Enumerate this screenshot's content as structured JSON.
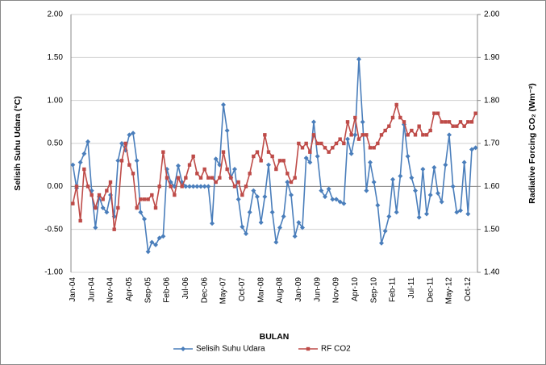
{
  "chart_data": {
    "type": "line",
    "x_label": "BULAN",
    "y_label": "Selisih Suhu Udara (°C)",
    "y2_label": "Radiative Forcing CO₂ (Wm⁻²)",
    "categories": [
      "Jan-04",
      null,
      null,
      null,
      null,
      "Jun-04",
      null,
      null,
      null,
      null,
      "Nov-04",
      null,
      null,
      null,
      null,
      "Apr-05",
      null,
      null,
      null,
      null,
      "Sep-05",
      null,
      null,
      null,
      null,
      "Feb-06",
      null,
      null,
      null,
      null,
      "Jul-06",
      null,
      null,
      null,
      null,
      "Dec-06",
      null,
      null,
      null,
      null,
      "May-07",
      null,
      null,
      null,
      null,
      "Oct-07",
      null,
      null,
      null,
      null,
      "Mar-08",
      null,
      null,
      null,
      null,
      "Aug-08",
      null,
      null,
      null,
      null,
      "Jan-09",
      null,
      null,
      null,
      null,
      "Jun-09",
      null,
      null,
      null,
      null,
      "Nov-09",
      null,
      null,
      null,
      null,
      "Apr-10",
      null,
      null,
      null,
      null,
      "Sep-10",
      null,
      null,
      null,
      null,
      "Feb-11",
      null,
      null,
      null,
      null,
      "Jul-11",
      null,
      null,
      null,
      null,
      "Dec-11",
      null,
      null,
      null,
      null,
      "May-12",
      null,
      null,
      null,
      null,
      "Oct-12",
      null,
      null
    ],
    "ylim": [
      -1,
      2
    ],
    "yticks": [
      {
        "value": -1,
        "label": "-1.00"
      },
      {
        "value": -0.5,
        "label": "-0.50"
      },
      {
        "value": 0,
        "label": "0.00"
      },
      {
        "value": 0.5,
        "label": "0.50"
      },
      {
        "value": 1,
        "label": "1.00"
      },
      {
        "value": 1.5,
        "label": "1.50"
      },
      {
        "value": 2,
        "label": "2.00"
      }
    ],
    "y2lim": [
      1.4,
      2.0
    ],
    "y2ticks": [
      {
        "value": 1.4,
        "label": "1.40"
      },
      {
        "value": 1.5,
        "label": "1.50"
      },
      {
        "value": 1.6,
        "label": "1.60"
      },
      {
        "value": 1.7,
        "label": "1.70"
      },
      {
        "value": 1.8,
        "label": "1.80"
      },
      {
        "value": 1.9,
        "label": "1.90"
      },
      {
        "value": 2.0,
        "label": "2.00"
      }
    ],
    "grid": true,
    "legend": "bottom",
    "series": [
      {
        "name": "Selisih Suhu Udara",
        "color": "#4a7ebb",
        "marker": "diamond",
        "values": [
          0.25,
          -0.02,
          0.28,
          0.38,
          0.52,
          -0.05,
          -0.48,
          -0.12,
          -0.25,
          -0.3,
          -0.1,
          -0.35,
          0.3,
          0.5,
          0.42,
          0.6,
          0.62,
          0.3,
          -0.3,
          -0.38,
          -0.76,
          -0.65,
          -0.68,
          -0.6,
          -0.58,
          0.2,
          0.05,
          0.0,
          0.24,
          0.05,
          0.0,
          0.0,
          0.0,
          0.0,
          0.0,
          0.0,
          0.0,
          -0.43,
          0.32,
          0.25,
          0.95,
          0.65,
          0.1,
          0.2,
          -0.15,
          -0.47,
          -0.55,
          -0.3,
          -0.05,
          -0.12,
          -0.42,
          -0.12,
          0.25,
          -0.3,
          -0.65,
          -0.48,
          -0.35,
          0.05,
          -0.1,
          -0.58,
          -0.42,
          -0.48,
          0.33,
          0.28,
          0.75,
          0.35,
          -0.05,
          -0.12,
          -0.03,
          -0.15,
          -0.15,
          -0.18,
          -0.2,
          0.55,
          0.38,
          0.6,
          1.48,
          0.75,
          -0.05,
          0.28,
          0.05,
          -0.22,
          -0.66,
          -0.52,
          -0.35,
          0.08,
          -0.3,
          0.12,
          0.72,
          0.35,
          0.1,
          -0.05,
          -0.36,
          0.2,
          -0.32,
          -0.1,
          0.22,
          -0.08,
          -0.18,
          0.25,
          0.6,
          0.0,
          -0.3,
          -0.28,
          0.28,
          -0.32,
          0.43,
          0.45
        ]
      },
      {
        "name": "RF CO2",
        "color": "#be4b48",
        "marker": "square",
        "axis": "y2",
        "values": [
          1.56,
          1.6,
          1.52,
          1.64,
          1.6,
          1.58,
          1.55,
          1.58,
          1.57,
          1.59,
          1.61,
          1.5,
          1.55,
          1.66,
          1.7,
          1.65,
          1.63,
          1.55,
          1.57,
          1.57,
          1.57,
          1.58,
          1.55,
          1.6,
          1.68,
          1.62,
          1.6,
          1.58,
          1.62,
          1.6,
          1.62,
          1.65,
          1.67,
          1.63,
          1.62,
          1.64,
          1.62,
          1.62,
          1.61,
          1.62,
          1.68,
          1.64,
          1.62,
          1.6,
          1.61,
          1.58,
          1.6,
          1.63,
          1.67,
          1.68,
          1.66,
          1.72,
          1.68,
          1.67,
          1.64,
          1.66,
          1.66,
          1.63,
          1.61,
          1.62,
          1.7,
          1.69,
          1.7,
          1.68,
          1.72,
          1.7,
          1.7,
          1.69,
          1.68,
          1.69,
          1.7,
          1.71,
          1.7,
          1.75,
          1.72,
          1.76,
          1.71,
          1.72,
          1.72,
          1.69,
          1.69,
          1.7,
          1.72,
          1.73,
          1.74,
          1.76,
          1.79,
          1.76,
          1.75,
          1.72,
          1.73,
          1.72,
          1.74,
          1.72,
          1.72,
          1.73,
          1.77,
          1.77,
          1.75,
          1.75,
          1.75,
          1.74,
          1.74,
          1.75,
          1.74,
          1.75,
          1.75,
          1.77
        ]
      }
    ]
  }
}
